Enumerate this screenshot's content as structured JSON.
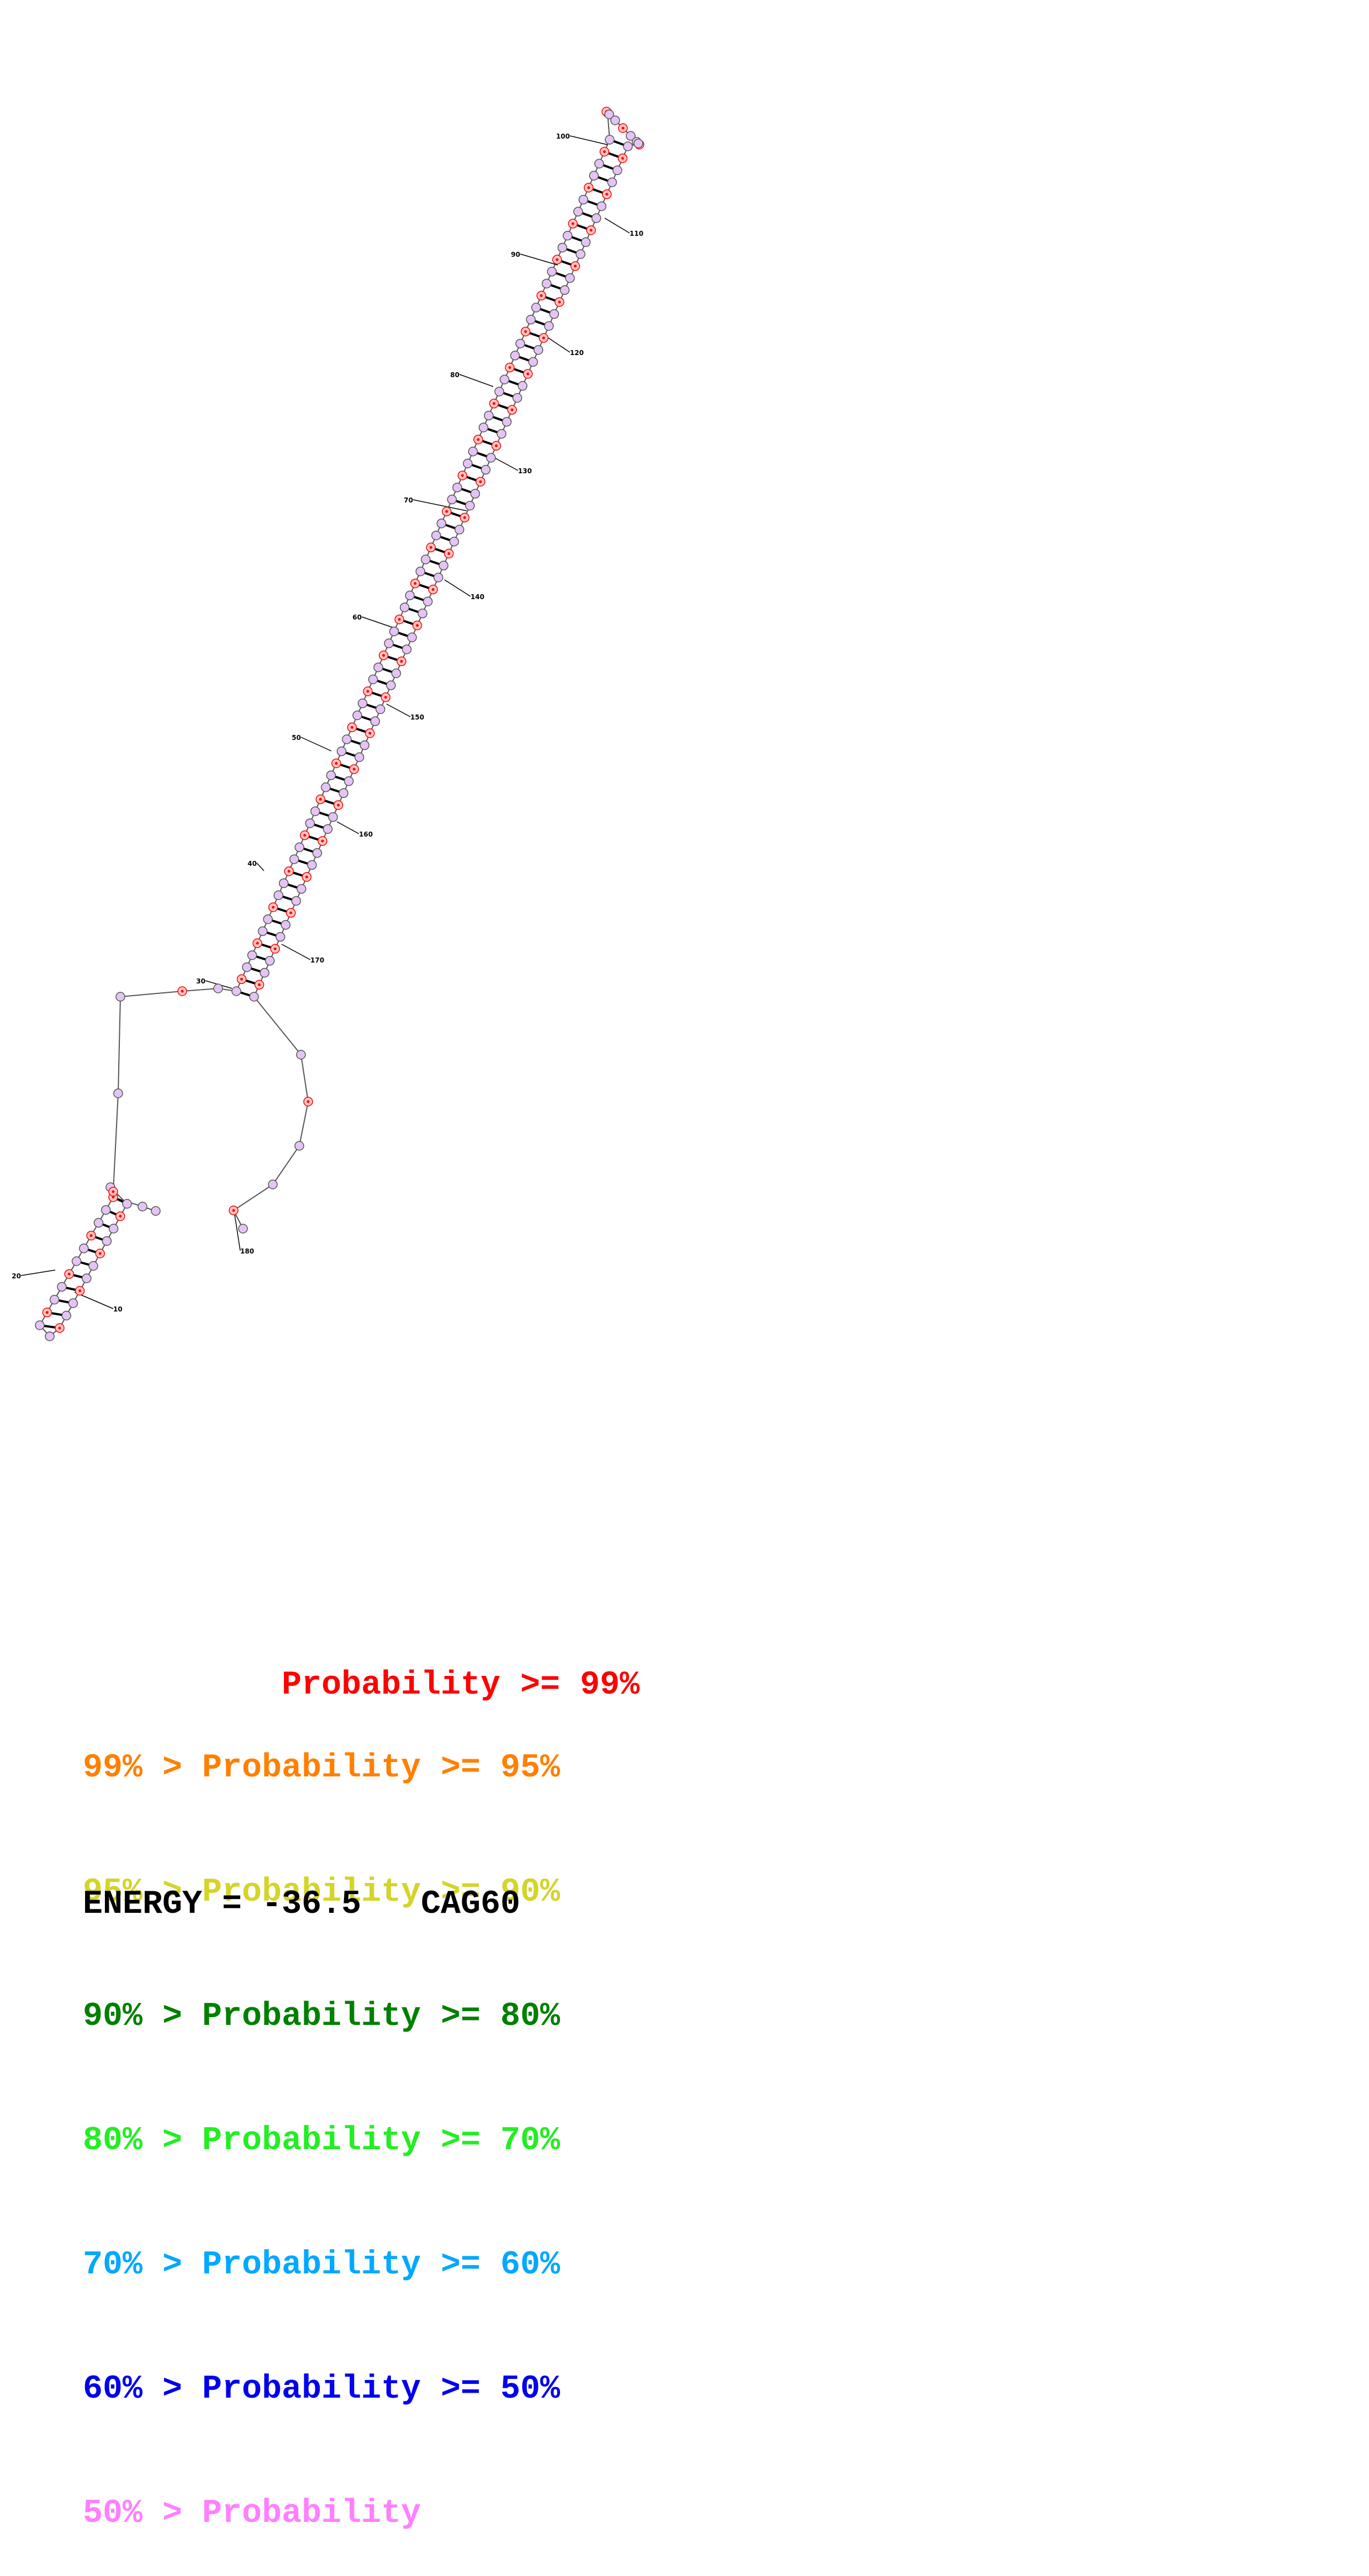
{
  "diagram": {
    "structure_name": "CAG60",
    "sequence_length": 182,
    "nucleotide_labels": [
      "10",
      "20",
      "30",
      "40",
      "50",
      "60",
      "70",
      "80",
      "90",
      "100",
      "110",
      "120",
      "130",
      "140",
      "150",
      "160",
      "170",
      "180"
    ],
    "colors": {
      "base_fill_low": "#e4c4f4",
      "base_fill_high": "#ffc4c4",
      "marker_red": "#ff0000",
      "outline": "#555555",
      "text": "#000000"
    }
  },
  "legend": {
    "rows": [
      {
        "prefix": "",
        "label": "Probability",
        "suffix": ">= 99%",
        "color": "#ff0000"
      },
      {
        "prefix": "99% > ",
        "label": "Probability",
        "suffix": ">= 95%",
        "color": "#ff8000"
      },
      {
        "prefix": "95% > ",
        "label": "Probability",
        "suffix": ">= 90%",
        "color": "#d4d42a"
      },
      {
        "prefix": "90% > ",
        "label": "Probability",
        "suffix": ">= 80%",
        "color": "#008000"
      },
      {
        "prefix": "80% > ",
        "label": "Probability",
        "suffix": ">= 70%",
        "color": "#22ee22"
      },
      {
        "prefix": "70% > ",
        "label": "Probability",
        "suffix": ">= 60%",
        "color": "#00a8ff"
      },
      {
        "prefix": "60% > ",
        "label": "Probability",
        "suffix": ">= 50%",
        "color": "#0000ee"
      },
      {
        "prefix": "50% > ",
        "label": "Probability",
        "suffix": "",
        "color": "#ff7fff"
      }
    ]
  },
  "energy": {
    "label": "ENERGY = ",
    "value": "-36.5",
    "name": "CAG60"
  }
}
